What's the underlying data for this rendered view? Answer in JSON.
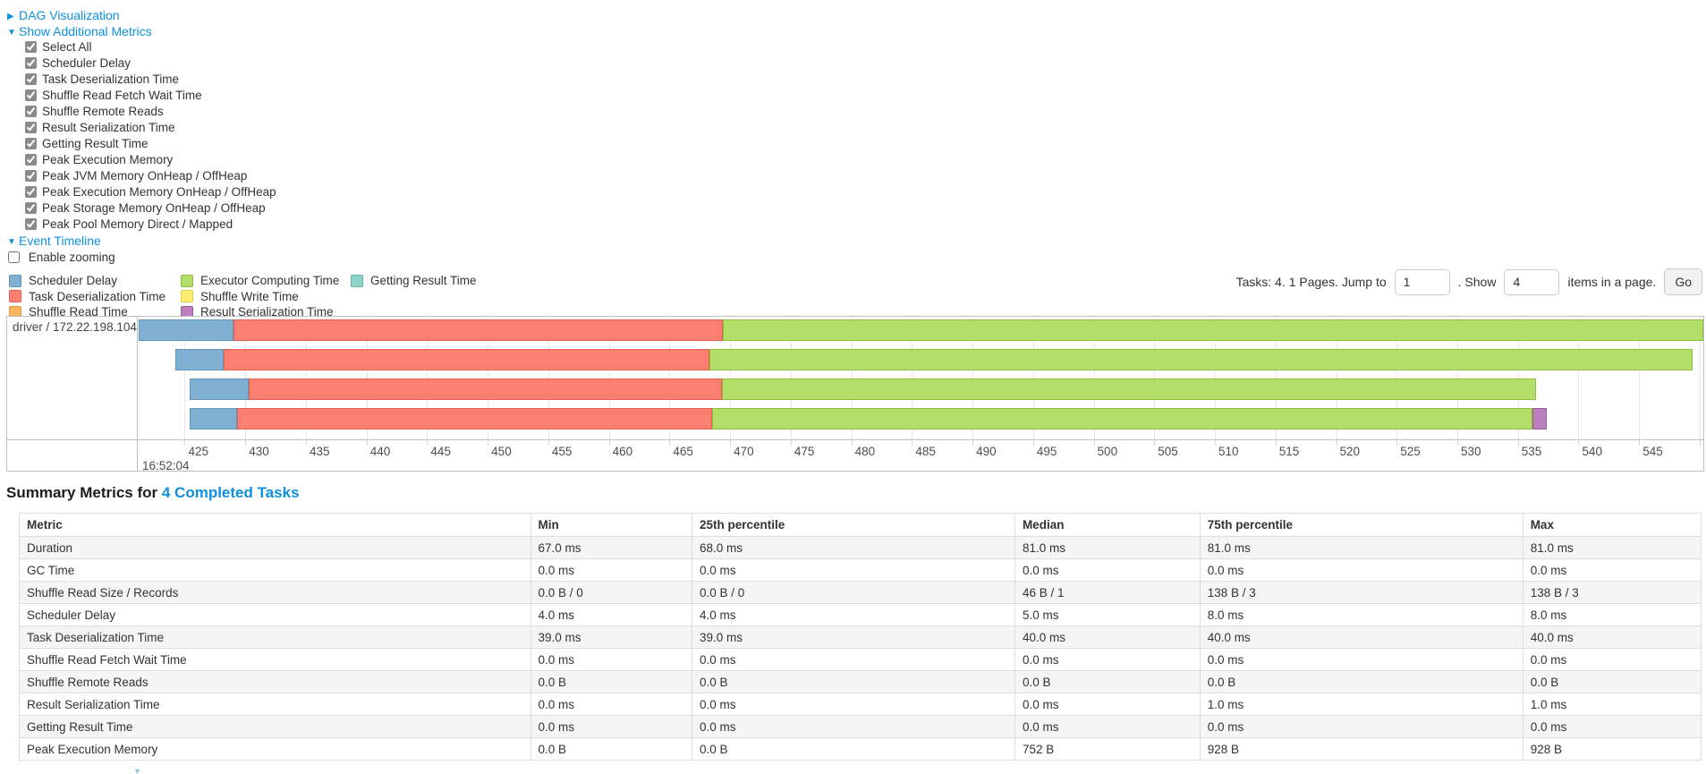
{
  "colors": {
    "link": "#0e90dd"
  },
  "toggles": {
    "dag": {
      "label": "DAG Visualization",
      "state": "collapsed"
    },
    "metrics": {
      "label": "Show Additional Metrics",
      "state": "expanded"
    },
    "timeline": {
      "label": "Event Timeline",
      "state": "expanded"
    }
  },
  "metric_checkboxes": [
    "Select All",
    "Scheduler Delay",
    "Task Deserialization Time",
    "Shuffle Read Fetch Wait Time",
    "Shuffle Remote Reads",
    "Result Serialization Time",
    "Getting Result Time",
    "Peak Execution Memory",
    "Peak JVM Memory OnHeap / OffHeap",
    "Peak Execution Memory OnHeap / OffHeap",
    "Peak Storage Memory OnHeap / OffHeap",
    "Peak Pool Memory Direct / Mapped"
  ],
  "enable_zooming_label": "Enable zooming",
  "legend": {
    "columns": [
      [
        {
          "label": "Scheduler Delay",
          "color": "#80B1D3",
          "border": "#6293BB"
        },
        {
          "label": "Task Deserialization Time",
          "color": "#FB8072",
          "border": "#E4604F"
        },
        {
          "label": "Shuffle Read Time",
          "color": "#FDB462",
          "border": "#E29741"
        }
      ],
      [
        {
          "label": "Executor Computing Time",
          "color": "#B3DE69",
          "border": "#8FBE3F"
        },
        {
          "label": "Shuffle Write Time",
          "color": "#FFED6F",
          "border": "#E0CE45"
        },
        {
          "label": "Result Serialization Time",
          "color": "#BC80BD",
          "border": "#9A5B9B"
        }
      ],
      [
        {
          "label": "Getting Result Time",
          "color": "#8DD3C7",
          "border": "#61B5A5"
        }
      ]
    ]
  },
  "pagination": {
    "tasks_text": "Tasks: 4. 1 Pages. Jump to",
    "jump_value": "1",
    "show_label": ". Show",
    "show_value": "4",
    "items_label": "items in a page.",
    "go_label": "Go"
  },
  "timeline_chart": {
    "group_label": "driver / 172.22.198.104",
    "axis": {
      "min": 421.2,
      "max": 550.3,
      "tick_start": 425,
      "tick_step": 5,
      "tick_end": 550,
      "major_label": "16:52:04"
    },
    "row_tops": [
      3,
      36,
      69,
      102
    ],
    "tasks": [
      {
        "segments": [
          {
            "type": "scheduler-delay",
            "start": 421.2,
            "end": 429.0
          },
          {
            "type": "deserialization",
            "start": 429.0,
            "end": 469.4
          },
          {
            "type": "computing",
            "start": 469.4,
            "end": 550.3
          }
        ]
      },
      {
        "segments": [
          {
            "type": "scheduler-delay",
            "start": 424.2,
            "end": 428.2
          },
          {
            "type": "deserialization",
            "start": 428.2,
            "end": 468.3
          },
          {
            "type": "computing",
            "start": 468.3,
            "end": 549.4
          }
        ]
      },
      {
        "segments": [
          {
            "type": "scheduler-delay",
            "start": 425.4,
            "end": 430.3
          },
          {
            "type": "deserialization",
            "start": 430.3,
            "end": 469.3
          },
          {
            "type": "computing",
            "start": 469.3,
            "end": 536.5
          }
        ]
      },
      {
        "segments": [
          {
            "type": "scheduler-delay",
            "start": 425.4,
            "end": 429.3
          },
          {
            "type": "deserialization",
            "start": 429.3,
            "end": 468.5
          },
          {
            "type": "computing",
            "start": 468.5,
            "end": 536.2
          },
          {
            "type": "result-serialization",
            "start": 536.2,
            "end": 537.4
          }
        ]
      }
    ],
    "segment_colors": {
      "scheduler-delay": {
        "fill": "#80B1D3",
        "border": "#6293BB"
      },
      "deserialization": {
        "fill": "#FB8072",
        "border": "#E4604F"
      },
      "computing": {
        "fill": "#B3DE69",
        "border": "#8FBE3F"
      },
      "result-serialization": {
        "fill": "#BC80BD",
        "border": "#9A5B9B"
      }
    }
  },
  "summary": {
    "title_prefix": "Summary Metrics for",
    "title_link": "4 Completed Tasks",
    "columns": [
      "Metric",
      "Min",
      "25th percentile",
      "Median",
      "75th percentile",
      "Max"
    ],
    "rows": [
      [
        "Duration",
        "67.0 ms",
        "68.0 ms",
        "81.0 ms",
        "81.0 ms",
        "81.0 ms"
      ],
      [
        "GC Time",
        "0.0 ms",
        "0.0 ms",
        "0.0 ms",
        "0.0 ms",
        "0.0 ms"
      ],
      [
        "Shuffle Read Size / Records",
        "0.0 B / 0",
        "0.0 B / 0",
        "46 B / 1",
        "138 B / 3",
        "138 B / 3"
      ],
      [
        "Scheduler Delay",
        "4.0 ms",
        "4.0 ms",
        "5.0 ms",
        "8.0 ms",
        "8.0 ms"
      ],
      [
        "Task Deserialization Time",
        "39.0 ms",
        "39.0 ms",
        "40.0 ms",
        "40.0 ms",
        "40.0 ms"
      ],
      [
        "Shuffle Read Fetch Wait Time",
        "0.0 ms",
        "0.0 ms",
        "0.0 ms",
        "0.0 ms",
        "0.0 ms"
      ],
      [
        "Shuffle Remote Reads",
        "0.0 B",
        "0.0 B",
        "0.0 B",
        "0.0 B",
        "0.0 B"
      ],
      [
        "Result Serialization Time",
        "0.0 ms",
        "0.0 ms",
        "0.0 ms",
        "1.0 ms",
        "1.0 ms"
      ],
      [
        "Getting Result Time",
        "0.0 ms",
        "0.0 ms",
        "0.0 ms",
        "0.0 ms",
        "0.0 ms"
      ],
      [
        "Peak Execution Memory",
        "0.0 B",
        "0.0 B",
        "752 B",
        "928 B",
        "928 B"
      ]
    ]
  }
}
